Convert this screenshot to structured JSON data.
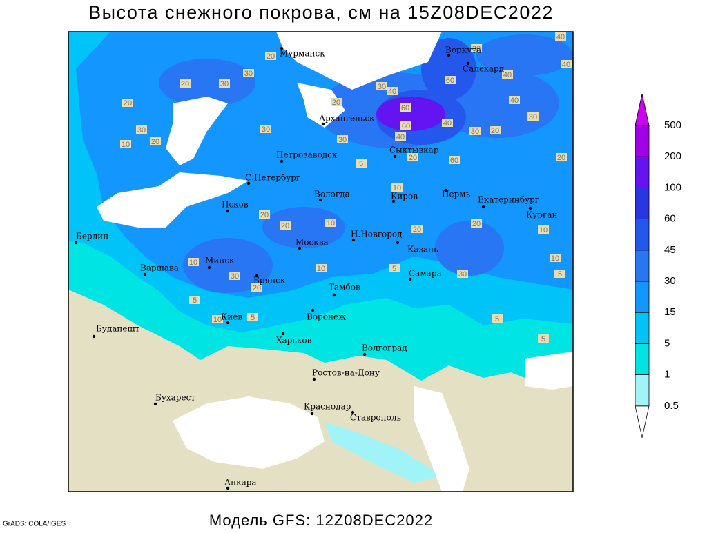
{
  "title": "Высота снежного покрова, см на 15Z08DEC2022",
  "footer": "Модель GFS: 12Z08DEC2022",
  "credit": "GrADS: COLA/IGES",
  "cities": [
    "Мурманск",
    "Воркута",
    "Салехард",
    "Архангельск",
    "Сыктывкар",
    "Петрозаводск",
    "С.Петербург",
    "Вологда",
    "Киров",
    "Пермь",
    "Екатеринбург",
    "Курган",
    "Псков",
    "Берлин",
    "Н.Новгород",
    "Москва",
    "Казань",
    "Минск",
    "Варшава",
    "Самара",
    "Брянск",
    "Тамбов",
    "Киев",
    "Воронеж",
    "Будапешт",
    "Харьков",
    "Волгоград",
    "Ростов-на-Дону",
    "Бухарест",
    "Краснодар",
    "Ставрополь",
    "Анкара"
  ],
  "contour_labels": [
    20,
    30,
    20,
    30,
    20,
    30,
    10,
    20,
    30,
    20,
    30,
    40,
    60,
    60,
    40,
    30,
    60,
    40,
    40,
    30,
    20,
    30,
    40,
    60,
    20,
    20,
    5,
    10,
    20,
    20,
    10,
    20,
    20,
    10,
    10,
    30,
    20,
    10,
    5,
    30,
    10,
    5,
    5,
    10,
    5,
    5,
    5,
    40,
    40,
    30
  ],
  "colorbar": {
    "levels": [
      0.5,
      1,
      5,
      15,
      30,
      45,
      60,
      100,
      200,
      500
    ],
    "colors": [
      "#ffffff",
      "#a0f4f8",
      "#00e4e4",
      "#00c4f8",
      "#1496ff",
      "#2876f4",
      "#2458ec",
      "#2a36e0",
      "#6414f0",
      "#a000e6",
      "#d200f2"
    ]
  }
}
